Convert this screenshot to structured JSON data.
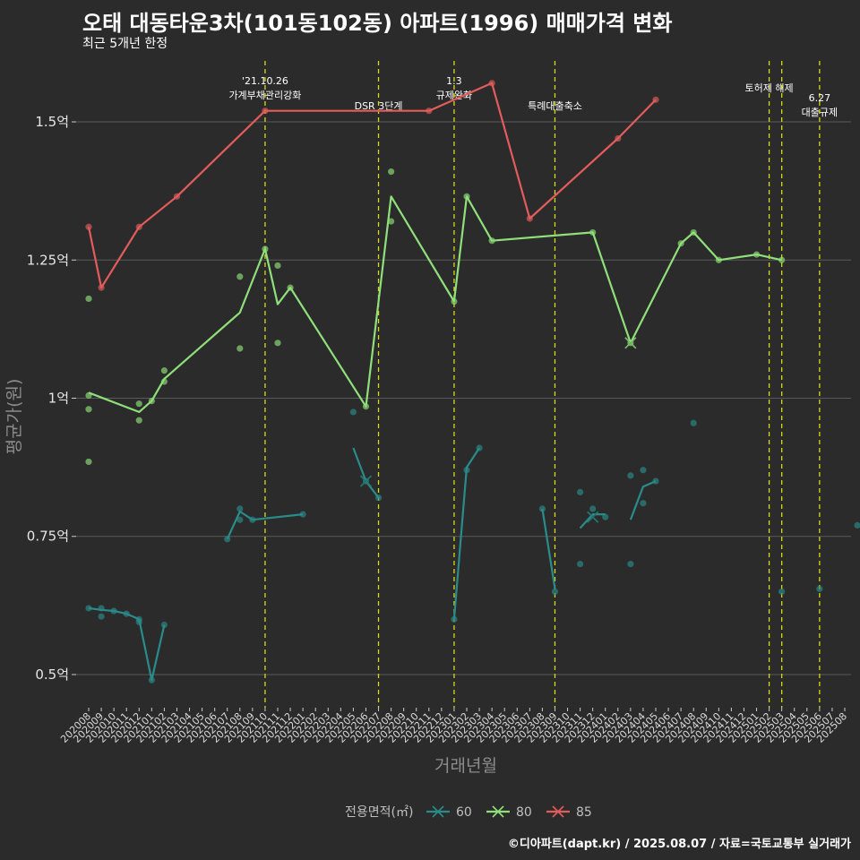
{
  "header": {
    "title": "오태 대동타운3차(101동102동) 아파트(1996) 매매가격 변화",
    "subtitle": "최근 5개년 한정"
  },
  "footer": {
    "credit": "©디아파트(dapt.kr) / 2025.08.07 / 자료=국토교통부 실거래가"
  },
  "colors": {
    "background": "#2b2b2b",
    "grid": "#5a5a5a",
    "event_line": "#d9d915",
    "s60": "#2a8c8a",
    "s80": "#8fe07a",
    "s85": "#e35c5c"
  },
  "chart_data": {
    "type": "line",
    "xlabel": "거래년월",
    "ylabel": "평균가(원)",
    "ylim": [
      0.44,
      1.62
    ],
    "y_ticks": [
      0.5,
      0.75,
      1.0,
      1.25,
      1.5
    ],
    "y_tick_labels": [
      "0.5억",
      "0.75억",
      "1억",
      "1.25억",
      "1.5억"
    ],
    "x_categories": [
      "202008",
      "202009",
      "202010",
      "202011",
      "202012",
      "202101",
      "202102",
      "202103",
      "202104",
      "202105",
      "202106",
      "202107",
      "202108",
      "202109",
      "202110",
      "202111",
      "202112",
      "202201",
      "202202",
      "202203",
      "202204",
      "202205",
      "202206",
      "202207",
      "202208",
      "202209",
      "202210",
      "202211",
      "202212",
      "202301",
      "202302",
      "202303",
      "202304",
      "202305",
      "202306",
      "202307",
      "202308",
      "202309",
      "202310",
      "202311",
      "202312",
      "202401",
      "202402",
      "202403",
      "202404",
      "202405",
      "202406",
      "202407",
      "202408",
      "202409",
      "202410",
      "202411",
      "202412",
      "202501",
      "202502",
      "202503",
      "202504",
      "202505",
      "202506",
      "202507",
      "202508"
    ],
    "events": [
      {
        "x": 14,
        "lines": [
          "'21.10.26",
          "가계부채관리강화"
        ]
      },
      {
        "x": 23,
        "lines": [
          "DSR 3단계"
        ]
      },
      {
        "x": 29,
        "lines": [
          "1.3",
          "규제완화"
        ]
      },
      {
        "x": 37,
        "lines": [
          "특례대출축소"
        ]
      },
      {
        "x": 54,
        "lines": [
          "토허제 해제"
        ]
      },
      {
        "x": 55,
        "lines": []
      },
      {
        "x": 58,
        "lines": [
          "6.27",
          "대출규제"
        ]
      }
    ],
    "legend": {
      "title": "전용면적(㎡)",
      "position": "bottom",
      "items": [
        "60",
        "80",
        "85"
      ]
    },
    "series": [
      {
        "name": "60",
        "color": "#2a8c8a",
        "line_segments": [
          [
            [
              0,
              0.62
            ],
            [
              1,
              0.617
            ],
            [
              2,
              0.615
            ],
            [
              3,
              0.61
            ],
            [
              4,
              0.6
            ],
            [
              5,
              0.49
            ],
            [
              6,
              0.59
            ]
          ],
          [
            [
              11,
              0.745
            ],
            [
              12,
              0.795
            ],
            [
              13,
              0.78
            ],
            [
              17,
              0.79
            ]
          ],
          [
            [
              21,
              0.91
            ],
            [
              22,
              0.85
            ],
            [
              23,
              0.82
            ]
          ],
          [
            [
              29,
              0.6
            ],
            [
              30,
              0.875
            ],
            [
              31,
              0.91
            ]
          ],
          [
            [
              36,
              0.8
            ],
            [
              37,
              0.655
            ]
          ],
          [
            [
              39,
              0.765
            ],
            [
              40,
              0.79
            ],
            [
              41,
              0.79
            ]
          ],
          [
            [
              43,
              0.78
            ],
            [
              44,
              0.84
            ],
            [
              45,
              0.85
            ]
          ]
        ],
        "points": [
          [
            0,
            0.62
          ],
          [
            1,
            0.62
          ],
          [
            1,
            0.605
          ],
          [
            2,
            0.615
          ],
          [
            3,
            0.61
          ],
          [
            4,
            0.6
          ],
          [
            4,
            0.595
          ],
          [
            5,
            0.49
          ],
          [
            6,
            0.59
          ],
          [
            11,
            0.745
          ],
          [
            12,
            0.78
          ],
          [
            12,
            0.8
          ],
          [
            13,
            0.78
          ],
          [
            17,
            0.79
          ],
          [
            21,
            0.975
          ],
          [
            22,
            0.85
          ],
          [
            23,
            0.82
          ],
          [
            29,
            0.6
          ],
          [
            30,
            0.87
          ],
          [
            31,
            0.91
          ],
          [
            36,
            0.8
          ],
          [
            37,
            0.65
          ],
          [
            39,
            0.83
          ],
          [
            39,
            0.7
          ],
          [
            40,
            0.8
          ],
          [
            41,
            0.785
          ],
          [
            43,
            0.86
          ],
          [
            43,
            0.7
          ],
          [
            44,
            0.87
          ],
          [
            44,
            0.81
          ],
          [
            45,
            0.85
          ],
          [
            48,
            0.955
          ],
          [
            55,
            0.65
          ],
          [
            58,
            0.655
          ],
          [
            61,
            0.77
          ]
        ],
        "cross_markers": [
          [
            22,
            0.85
          ],
          [
            40,
            0.785
          ]
        ]
      },
      {
        "name": "80",
        "color": "#8fe07a",
        "line_segments": [
          [
            [
              0,
              1.01
            ],
            [
              4,
              0.975
            ],
            [
              5,
              0.995
            ],
            [
              6,
              1.035
            ],
            [
              12,
              1.155
            ],
            [
              14,
              1.27
            ],
            [
              15,
              1.17
            ],
            [
              16,
              1.2
            ],
            [
              22,
              0.985
            ],
            [
              24,
              1.365
            ],
            [
              29,
              1.175
            ],
            [
              30,
              1.365
            ],
            [
              32,
              1.285
            ],
            [
              40,
              1.3
            ],
            [
              43,
              1.1
            ],
            [
              47,
              1.28
            ],
            [
              48,
              1.3
            ],
            [
              50,
              1.25
            ],
            [
              53,
              1.26
            ],
            [
              55,
              1.25
            ]
          ]
        ],
        "points": [
          [
            0,
            1.18
          ],
          [
            0,
            1.005
          ],
          [
            0,
            0.98
          ],
          [
            0,
            0.885
          ],
          [
            4,
            0.99
          ],
          [
            4,
            0.96
          ],
          [
            5,
            0.995
          ],
          [
            6,
            1.05
          ],
          [
            6,
            1.03
          ],
          [
            12,
            1.22
          ],
          [
            12,
            1.09
          ],
          [
            14,
            1.27
          ],
          [
            15,
            1.24
          ],
          [
            15,
            1.1
          ],
          [
            16,
            1.2
          ],
          [
            22,
            0.985
          ],
          [
            24,
            1.41
          ],
          [
            24,
            1.32
          ],
          [
            29,
            1.175
          ],
          [
            30,
            1.365
          ],
          [
            32,
            1.285
          ],
          [
            40,
            1.3
          ],
          [
            43,
            1.1
          ],
          [
            47,
            1.28
          ],
          [
            48,
            1.3
          ],
          [
            50,
            1.25
          ],
          [
            53,
            1.26
          ],
          [
            55,
            1.25
          ]
        ],
        "cross_markers": [
          [
            43,
            1.1
          ]
        ]
      },
      {
        "name": "85",
        "color": "#e35c5c",
        "line_segments": [
          [
            [
              0,
              1.31
            ],
            [
              1,
              1.2
            ],
            [
              4,
              1.31
            ],
            [
              7,
              1.365
            ],
            [
              14,
              1.52
            ],
            [
              27,
              1.52
            ],
            [
              32,
              1.57
            ],
            [
              35,
              1.325
            ],
            [
              42,
              1.47
            ],
            [
              45,
              1.54
            ]
          ]
        ],
        "points": [
          [
            0,
            1.31
          ],
          [
            1,
            1.2
          ],
          [
            4,
            1.31
          ],
          [
            7,
            1.365
          ],
          [
            14,
            1.52
          ],
          [
            27,
            1.52
          ],
          [
            32,
            1.57
          ],
          [
            35,
            1.325
          ],
          [
            42,
            1.47
          ],
          [
            45,
            1.54
          ]
        ],
        "cross_markers": []
      }
    ]
  }
}
